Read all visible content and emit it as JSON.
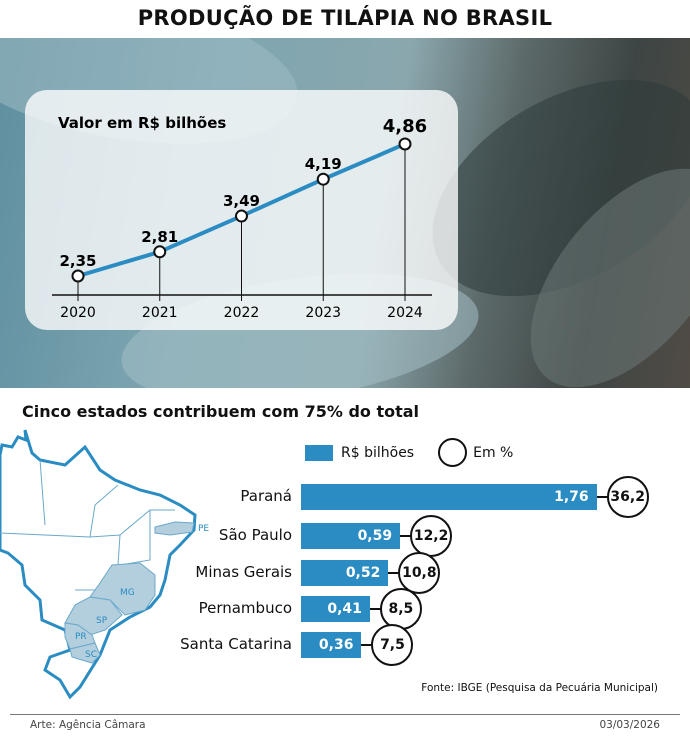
{
  "title": "PRODUÇÃO DE TILÁPIA NO BRASIL",
  "subtitle": "Cinco estados contribuem com 75% do total",
  "source": "Fonte: IBGE (Pesquisa da Pecuária Municipal)",
  "credit": "Arte: Agência Câmara",
  "date": "03/03/2026",
  "map_labels": [
    "PE",
    "MG",
    "SP",
    "PR",
    "SC"
  ],
  "colors": {
    "bar": "#2a8cc2",
    "line": "#2a8cc2",
    "map_highlight": "#b3cfdd",
    "map_stroke": "#2a8cc2"
  },
  "chart_data": [
    {
      "type": "line",
      "title": "Valor em R$ bilhões",
      "x": [
        "2020",
        "2021",
        "2022",
        "2023",
        "2024"
      ],
      "values": [
        2.35,
        2.81,
        3.49,
        4.19,
        4.86
      ],
      "labels": [
        "2,35",
        "2,81",
        "3,49",
        "4,19",
        "4,86"
      ]
    },
    {
      "type": "bar",
      "orientation": "horizontal",
      "legend": [
        "R$ bilhões",
        "Em %"
      ],
      "categories": [
        "Paraná",
        "São Paulo",
        "Minas Gerais",
        "Pernambuco",
        "Santa Catarina"
      ],
      "values": [
        1.76,
        0.59,
        0.52,
        0.41,
        0.36
      ],
      "value_labels": [
        "1,76",
        "0,59",
        "0,52",
        "0,41",
        "0,36"
      ],
      "percent": [
        36.2,
        12.2,
        10.8,
        8.5,
        7.5
      ],
      "percent_labels": [
        "36,2",
        "12,2",
        "10,8",
        "8,5",
        "7,5"
      ]
    }
  ]
}
